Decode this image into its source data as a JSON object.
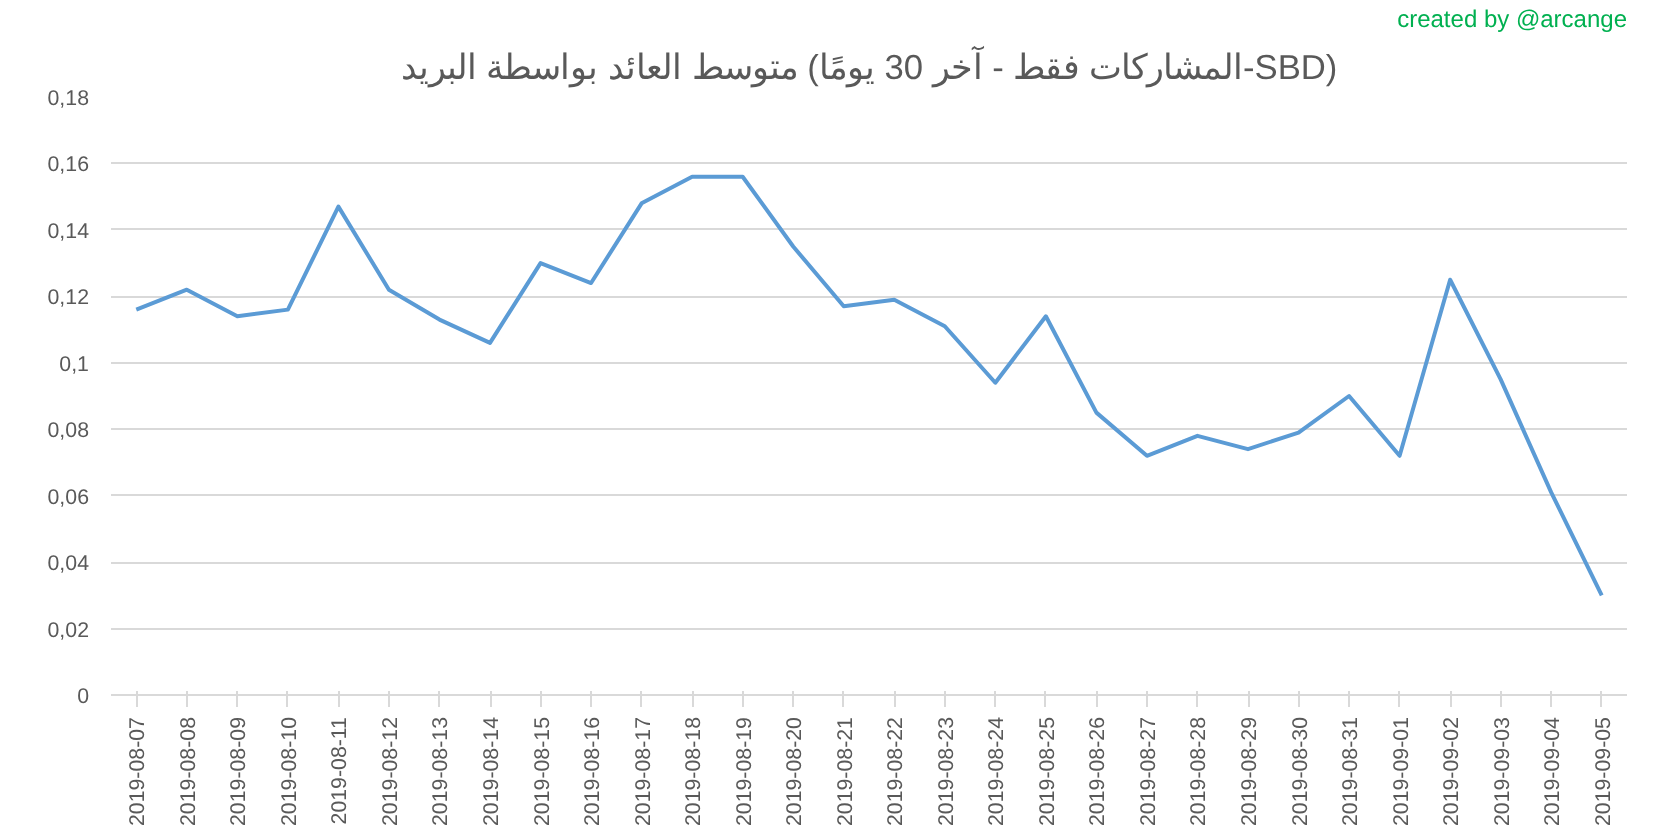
{
  "chart_data": {
    "type": "line",
    "title": "متوسط العائد بواسطة البريد (المشاركات فقط - آخر 30 يومًا-SBD)",
    "annotations": [
      "created by @arcange"
    ],
    "categories": [
      "2019-08-07",
      "2019-08-08",
      "2019-08-09",
      "2019-08-10",
      "2019-08-11",
      "2019-08-12",
      "2019-08-13",
      "2019-08-14",
      "2019-08-15",
      "2019-08-16",
      "2019-08-17",
      "2019-08-18",
      "2019-08-19",
      "2019-08-20",
      "2019-08-21",
      "2019-08-22",
      "2019-08-23",
      "2019-08-24",
      "2019-08-25",
      "2019-08-26",
      "2019-08-27",
      "2019-08-28",
      "2019-08-29",
      "2019-08-30",
      "2019-08-31",
      "2019-09-01",
      "2019-09-02",
      "2019-09-03",
      "2019-09-04",
      "2019-09-05"
    ],
    "series": [
      {
        "color": "#5b9bd5",
        "values": [
          0.116,
          0.122,
          0.114,
          0.116,
          0.147,
          0.122,
          0.113,
          0.106,
          0.13,
          0.124,
          0.148,
          0.156,
          0.156,
          0.135,
          0.117,
          0.119,
          0.111,
          0.094,
          0.114,
          0.085,
          0.072,
          0.078,
          0.074,
          0.079,
          0.09,
          0.072,
          0.125,
          0.095,
          0.061,
          0.03
        ]
      }
    ],
    "ylim": [
      0,
      0.18
    ],
    "yticks": [
      0,
      {
        "value": 0.02,
        "label": "0,02"
      },
      {
        "value": 0.04,
        "label": "0,04"
      },
      {
        "value": 0.06,
        "label": "0,06"
      },
      {
        "value": 0.08,
        "label": "0,08"
      },
      {
        "value": 0.1,
        "label": "0,1"
      },
      {
        "value": 0.12,
        "label": "0,12"
      },
      {
        "value": 0.14,
        "label": "0,14"
      },
      {
        "value": 0.16,
        "label": "0,16"
      },
      {
        "value": 0.18,
        "label": "0,18"
      }
    ],
    "grid": "y",
    "marker": "none",
    "line_style": "solid"
  }
}
